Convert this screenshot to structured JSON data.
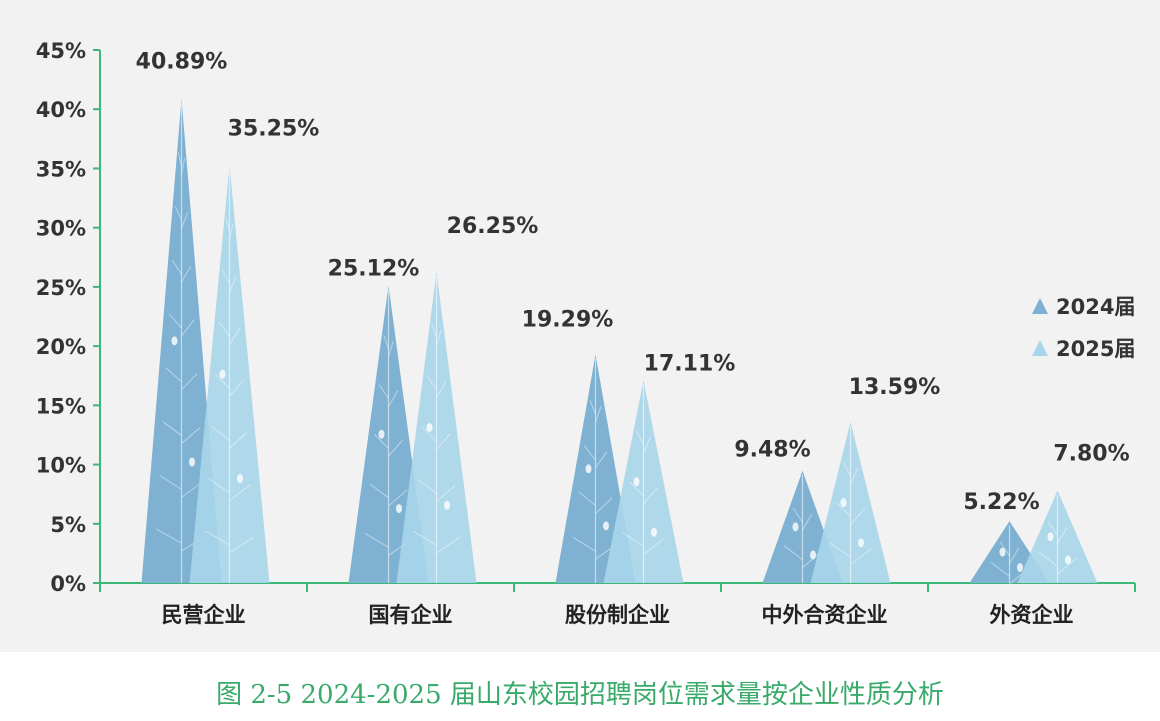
{
  "caption": "图 2-5 2024-2025 届山东校园招聘岗位需求量按企业性质分析",
  "chart_data": {
    "type": "bar",
    "categories": [
      "民营企业",
      "国有企业",
      "股份制企业",
      "中外合资企业",
      "外资企业"
    ],
    "series": [
      {
        "name": "2024届",
        "values": [
          40.89,
          25.12,
          19.29,
          9.48,
          5.22
        ],
        "labels": [
          "40.89%",
          "25.12%",
          "19.29%",
          "9.48%",
          "5.22%"
        ],
        "color": "#7fb2d2"
      },
      {
        "name": "2025届",
        "values": [
          35.25,
          26.25,
          17.11,
          13.59,
          7.8
        ],
        "labels": [
          "35.25%",
          "26.25%",
          "17.11%",
          "13.59%",
          "7.80%"
        ],
        "color": "#a9d5ea"
      }
    ],
    "ylim": [
      0,
      45
    ],
    "yticks": [
      0,
      5,
      10,
      15,
      20,
      25,
      30,
      35,
      40,
      45
    ],
    "ytick_labels": [
      "0%",
      "5%",
      "10%",
      "15%",
      "20%",
      "25%",
      "30%",
      "35%",
      "40%",
      "45%"
    ],
    "legend_position": "right",
    "axis_color": "#3cb878",
    "grid": false
  }
}
